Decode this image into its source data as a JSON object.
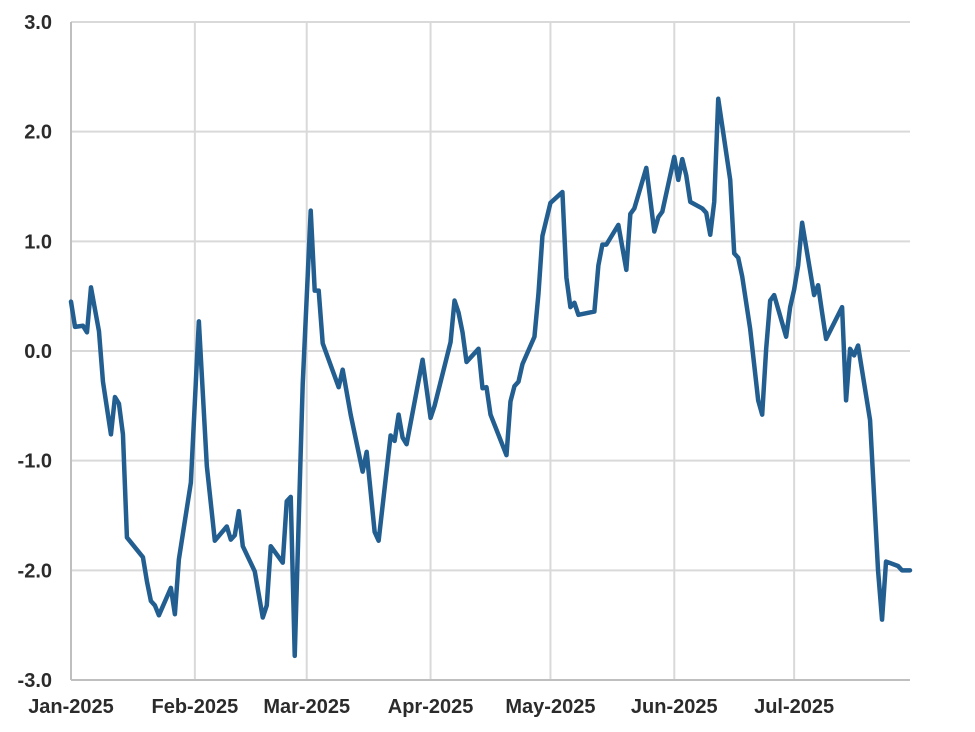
{
  "chart_data": {
    "type": "line",
    "title": "",
    "xlabel": "",
    "ylabel": "",
    "ylim": [
      -3.0,
      3.0
    ],
    "xlim": [
      "2025-01-01",
      "2025-07-30"
    ],
    "grid": true,
    "y_ticks": [
      {
        "value": 3.0,
        "label": "3.0"
      },
      {
        "value": 2.0,
        "label": "2.0"
      },
      {
        "value": 1.0,
        "label": "1.0"
      },
      {
        "value": 0.0,
        "label": "0.0"
      },
      {
        "value": -1.0,
        "label": "-1.0"
      },
      {
        "value": -2.0,
        "label": "-2.0"
      },
      {
        "value": -3.0,
        "label": "-3.0"
      }
    ],
    "x_ticks": [
      {
        "date": "2025-01-01",
        "label": "Jan-2025"
      },
      {
        "date": "2025-02-01",
        "label": "Feb-2025"
      },
      {
        "date": "2025-03-01",
        "label": "Mar-2025"
      },
      {
        "date": "2025-04-01",
        "label": "Apr-2025"
      },
      {
        "date": "2025-05-01",
        "label": "May-2025"
      },
      {
        "date": "2025-06-01",
        "label": "Jun-2025"
      },
      {
        "date": "2025-07-01",
        "label": "Jul-2025"
      }
    ],
    "series": [
      {
        "color": "#235e91",
        "points": [
          [
            "2025-01-01",
            0.45
          ],
          [
            "2025-01-02",
            0.22
          ],
          [
            "2025-01-04",
            0.23
          ],
          [
            "2025-01-05",
            0.17
          ],
          [
            "2025-01-06",
            0.58
          ],
          [
            "2025-01-08",
            0.18
          ],
          [
            "2025-01-09",
            -0.28
          ],
          [
            "2025-01-11",
            -0.76
          ],
          [
            "2025-01-12",
            -0.42
          ],
          [
            "2025-01-13",
            -0.48
          ],
          [
            "2025-01-14",
            -0.76
          ],
          [
            "2025-01-15",
            -1.7
          ],
          [
            "2025-01-19",
            -1.88
          ],
          [
            "2025-01-20",
            -2.1
          ],
          [
            "2025-01-21",
            -2.28
          ],
          [
            "2025-01-22",
            -2.32
          ],
          [
            "2025-01-23",
            -2.41
          ],
          [
            "2025-01-26",
            -2.16
          ],
          [
            "2025-01-27",
            -2.4
          ],
          [
            "2025-01-28",
            -1.9
          ],
          [
            "2025-01-31",
            -1.2
          ],
          [
            "2025-02-02",
            0.27
          ],
          [
            "2025-02-04",
            -1.05
          ],
          [
            "2025-02-06",
            -1.73
          ],
          [
            "2025-02-09",
            -1.6
          ],
          [
            "2025-02-10",
            -1.72
          ],
          [
            "2025-02-11",
            -1.68
          ],
          [
            "2025-02-12",
            -1.46
          ],
          [
            "2025-02-13",
            -1.78
          ],
          [
            "2025-02-16",
            -2.01
          ],
          [
            "2025-02-18",
            -2.43
          ],
          [
            "2025-02-19",
            -2.32
          ],
          [
            "2025-02-20",
            -1.78
          ],
          [
            "2025-02-23",
            -1.93
          ],
          [
            "2025-02-24",
            -1.37
          ],
          [
            "2025-02-25",
            -1.33
          ],
          [
            "2025-02-26",
            -2.78
          ],
          [
            "2025-02-28",
            -0.3
          ],
          [
            "2025-03-02",
            1.28
          ],
          [
            "2025-03-03",
            0.55
          ],
          [
            "2025-03-04",
            0.55
          ],
          [
            "2025-03-05",
            0.07
          ],
          [
            "2025-03-09",
            -0.33
          ],
          [
            "2025-03-10",
            -0.17
          ],
          [
            "2025-03-12",
            -0.58
          ],
          [
            "2025-03-15",
            -1.1
          ],
          [
            "2025-03-16",
            -0.92
          ],
          [
            "2025-03-18",
            -1.65
          ],
          [
            "2025-03-19",
            -1.73
          ],
          [
            "2025-03-22",
            -0.77
          ],
          [
            "2025-03-23",
            -0.82
          ],
          [
            "2025-03-24",
            -0.58
          ],
          [
            "2025-03-25",
            -0.79
          ],
          [
            "2025-03-26",
            -0.85
          ],
          [
            "2025-03-30",
            -0.08
          ],
          [
            "2025-04-01",
            -0.61
          ],
          [
            "2025-04-02",
            -0.5
          ],
          [
            "2025-04-06",
            0.08
          ],
          [
            "2025-04-07",
            0.46
          ],
          [
            "2025-04-08",
            0.35
          ],
          [
            "2025-04-09",
            0.17
          ],
          [
            "2025-04-10",
            -0.1
          ],
          [
            "2025-04-13",
            0.02
          ],
          [
            "2025-04-14",
            -0.34
          ],
          [
            "2025-04-15",
            -0.33
          ],
          [
            "2025-04-16",
            -0.58
          ],
          [
            "2025-04-20",
            -0.95
          ],
          [
            "2025-04-21",
            -0.46
          ],
          [
            "2025-04-22",
            -0.32
          ],
          [
            "2025-04-23",
            -0.28
          ],
          [
            "2025-04-24",
            -0.12
          ],
          [
            "2025-04-27",
            0.13
          ],
          [
            "2025-04-28",
            0.52
          ],
          [
            "2025-04-29",
            1.05
          ],
          [
            "2025-05-01",
            1.35
          ],
          [
            "2025-05-04",
            1.45
          ],
          [
            "2025-05-05",
            0.67
          ],
          [
            "2025-05-06",
            0.4
          ],
          [
            "2025-05-07",
            0.44
          ],
          [
            "2025-05-08",
            0.33
          ],
          [
            "2025-05-12",
            0.36
          ],
          [
            "2025-05-13",
            0.78
          ],
          [
            "2025-05-14",
            0.97
          ],
          [
            "2025-05-15",
            0.97
          ],
          [
            "2025-05-18",
            1.15
          ],
          [
            "2025-05-20",
            0.74
          ],
          [
            "2025-05-21",
            1.25
          ],
          [
            "2025-05-22",
            1.3
          ],
          [
            "2025-05-25",
            1.67
          ],
          [
            "2025-05-27",
            1.09
          ],
          [
            "2025-05-28",
            1.22
          ],
          [
            "2025-05-29",
            1.27
          ],
          [
            "2025-06-01",
            1.77
          ],
          [
            "2025-06-02",
            1.56
          ],
          [
            "2025-06-03",
            1.75
          ],
          [
            "2025-06-04",
            1.6
          ],
          [
            "2025-06-05",
            1.36
          ],
          [
            "2025-06-08",
            1.3
          ],
          [
            "2025-06-09",
            1.26
          ],
          [
            "2025-06-10",
            1.06
          ],
          [
            "2025-06-11",
            1.36
          ],
          [
            "2025-06-12",
            2.3
          ],
          [
            "2025-06-15",
            1.56
          ],
          [
            "2025-06-16",
            0.89
          ],
          [
            "2025-06-17",
            0.85
          ],
          [
            "2025-06-18",
            0.68
          ],
          [
            "2025-06-20",
            0.2
          ],
          [
            "2025-06-22",
            -0.45
          ],
          [
            "2025-06-23",
            -0.58
          ],
          [
            "2025-06-24",
            0.02
          ],
          [
            "2025-06-25",
            0.46
          ],
          [
            "2025-06-26",
            0.51
          ],
          [
            "2025-06-29",
            0.13
          ],
          [
            "2025-06-30",
            0.4
          ],
          [
            "2025-07-01",
            0.56
          ],
          [
            "2025-07-02",
            0.78
          ],
          [
            "2025-07-03",
            1.17
          ],
          [
            "2025-07-06",
            0.51
          ],
          [
            "2025-07-07",
            0.6
          ],
          [
            "2025-07-08",
            0.35
          ],
          [
            "2025-07-09",
            0.11
          ],
          [
            "2025-07-13",
            0.4
          ],
          [
            "2025-07-14",
            -0.45
          ],
          [
            "2025-07-15",
            0.02
          ],
          [
            "2025-07-16",
            -0.04
          ],
          [
            "2025-07-17",
            0.05
          ],
          [
            "2025-07-20",
            -0.63
          ],
          [
            "2025-07-22",
            -2.0
          ],
          [
            "2025-07-23",
            -2.45
          ],
          [
            "2025-07-24",
            -1.92
          ],
          [
            "2025-07-27",
            -1.96
          ],
          [
            "2025-07-28",
            -2.0
          ],
          [
            "2025-07-30",
            -2.0
          ]
        ]
      }
    ]
  }
}
